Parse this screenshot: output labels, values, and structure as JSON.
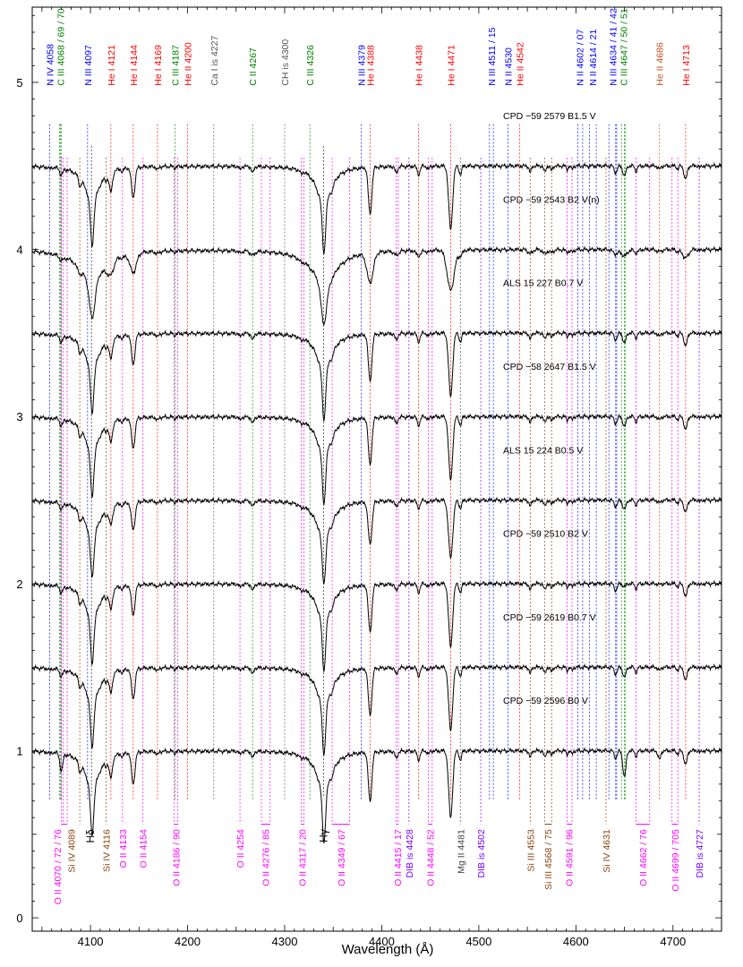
{
  "chart_data": {
    "type": "line",
    "title": "",
    "xlabel": "Wavelength (Å)",
    "ylabel": "",
    "xlim": [
      4040,
      4750
    ],
    "ylim": [
      -0.08,
      5.45
    ],
    "grid": false,
    "x_ticks": [
      4100,
      4200,
      4300,
      4400,
      4500,
      4600,
      4700
    ],
    "y_ticks": [
      0,
      1,
      2,
      3,
      4,
      5
    ],
    "colors": {
      "NIV": "#0000ff",
      "NIII": "#0000ff",
      "NII": "#0000ff",
      "CIII": "#008000",
      "CII": "#008000",
      "HeI": "#ff0000",
      "HeII": "#c8501e",
      "CaI": "#555555",
      "CH": "#555555",
      "OII": "#ff00ff",
      "SiIV": "#8b4513",
      "SiIII": "#8b4513",
      "MgII": "#444444",
      "DIB": "#7b00ff",
      "H": "#000000"
    },
    "series": [
      {
        "name": "CPD −59 2579   B1.5 V",
        "offset": 4.5,
        "profile": "b15",
        "vsini": 1.0,
        "strength": 1.0
      },
      {
        "name": "CPD −59 2543   B2 V(n)",
        "offset": 4.0,
        "profile": "b2n",
        "vsini": 1.8,
        "strength": 0.85
      },
      {
        "name": "ALS 15 227   B0.7 V",
        "offset": 3.5,
        "profile": "b07",
        "vsini": 1.0,
        "strength": 1.0
      },
      {
        "name": "CPD −58 2647   B1.5 V",
        "offset": 3.0,
        "profile": "b15",
        "vsini": 1.0,
        "strength": 1.0
      },
      {
        "name": "ALS 15 224   B0.5 V",
        "offset": 2.5,
        "profile": "b05",
        "vsini": 1.1,
        "strength": 0.95
      },
      {
        "name": "CPD −59 2510   B2 V",
        "offset": 2.0,
        "profile": "b2",
        "vsini": 1.0,
        "strength": 1.0
      },
      {
        "name": "CPD −59 2619   B0.7 V",
        "offset": 1.5,
        "profile": "b07",
        "vsini": 1.0,
        "strength": 1.0
      },
      {
        "name": "CPD −59 2596   B0 V",
        "offset": 1.0,
        "profile": "b0",
        "vsini": 1.0,
        "strength": 1.05
      }
    ],
    "top_labels": [
      {
        "text": "N IV 4058",
        "wl": 4058,
        "color": "#0000ff",
        "lines": [
          4058
        ]
      },
      {
        "text": "C III 4068 / 69 / 70",
        "wl": 4069,
        "color": "#008000",
        "lines": [
          4068,
          4069,
          4070
        ]
      },
      {
        "text": "N III 4097",
        "wl": 4097,
        "color": "#0000ff",
        "lines": [
          4097
        ]
      },
      {
        "text": "He I 4121",
        "wl": 4121,
        "color": "#ff0000",
        "lines": [
          4121
        ]
      },
      {
        "text": "He I 4144",
        "wl": 4144,
        "color": "#ff0000",
        "lines": [
          4144
        ]
      },
      {
        "text": "He I 4169",
        "wl": 4169,
        "color": "#ff0000",
        "lines": [
          4169
        ]
      },
      {
        "text": "C III 4187",
        "wl": 4187,
        "color": "#008000",
        "lines": [
          4187
        ]
      },
      {
        "text": "He II 4200",
        "wl": 4200,
        "color": "#ff0000",
        "lines": [
          4200
        ]
      },
      {
        "text": "Ca I is 4227",
        "wl": 4227,
        "color": "#555555",
        "lines": [
          4227
        ]
      },
      {
        "text": "C II 4267",
        "wl": 4267,
        "color": "#008000",
        "lines": [
          4267
        ]
      },
      {
        "text": "CH is 4300",
        "wl": 4300,
        "color": "#555555",
        "lines": [
          4300
        ]
      },
      {
        "text": "C III 4326",
        "wl": 4326,
        "color": "#008000",
        "lines": [
          4326
        ]
      },
      {
        "text": "N III 4379",
        "wl": 4379,
        "color": "#0000ff",
        "lines": [
          4379
        ]
      },
      {
        "text": "He I 4388",
        "wl": 4388,
        "color": "#ff0000",
        "lines": [
          4388
        ]
      },
      {
        "text": "He I 4438",
        "wl": 4438,
        "color": "#ff0000",
        "lines": [
          4438
        ]
      },
      {
        "text": "He I 4471",
        "wl": 4471,
        "color": "#ff0000",
        "lines": [
          4471
        ]
      },
      {
        "text": "N III 4511 / 15",
        "wl": 4513,
        "color": "#0000ff",
        "lines": [
          4511,
          4515
        ]
      },
      {
        "text": "N II 4530",
        "wl": 4530,
        "color": "#0000ff",
        "lines": [
          4530
        ]
      },
      {
        "text": "He II 4542",
        "wl": 4542,
        "color": "#ff0000",
        "lines": [
          4542
        ]
      },
      {
        "text": "N II 4602 / 07",
        "wl": 4604,
        "color": "#0000ff",
        "lines": [
          4602,
          4607
        ]
      },
      {
        "text": "N II 4614 / 21",
        "wl": 4617,
        "color": "#0000ff",
        "lines": [
          4614,
          4621
        ]
      },
      {
        "text": "N III 4634 / 41 / 42",
        "wl": 4638,
        "color": "#0000ff",
        "lines": [
          4634,
          4641,
          4642
        ]
      },
      {
        "text": "C III 4647 / 50 / 51",
        "wl": 4649,
        "color": "#008000",
        "lines": [
          4647,
          4650,
          4651
        ]
      },
      {
        "text": "He II 4686",
        "wl": 4686,
        "color": "#c8501e",
        "lines": [
          4686
        ]
      },
      {
        "text": "He I 4713",
        "wl": 4713,
        "color": "#ff0000",
        "lines": [
          4713
        ]
      }
    ],
    "bottom_labels": [
      {
        "text": "O II 4070 / 72 / 76",
        "wl": 4066,
        "color": "#ff00ff",
        "lines": [
          4070,
          4072,
          4076
        ]
      },
      {
        "text": "Si IV 4089",
        "wl": 4080,
        "color": "#8b4513",
        "lines": [
          4089
        ]
      },
      {
        "text": "Hδ",
        "wl": 4100,
        "color": "#000000",
        "lines": [
          4101
        ]
      },
      {
        "text": "Si IV 4116",
        "wl": 4116,
        "color": "#8b4513",
        "lines": [
          4116
        ]
      },
      {
        "text": "O II 4133",
        "wl": 4133,
        "color": "#ff00ff",
        "lines": [
          4133
        ]
      },
      {
        "text": "O II 4154",
        "wl": 4154,
        "color": "#ff00ff",
        "lines": [
          4154
        ]
      },
      {
        "text": "O II 4186 / 90",
        "wl": 4188,
        "color": "#ff00ff",
        "lines": [
          4186,
          4190
        ]
      },
      {
        "text": "O II 4254",
        "wl": 4254,
        "color": "#ff00ff",
        "lines": [
          4254
        ]
      },
      {
        "text": "O II 4276 / 85",
        "wl": 4280,
        "color": "#ff00ff",
        "lines": [
          4276,
          4285
        ]
      },
      {
        "text": "O II 4317 / 20",
        "wl": 4318,
        "color": "#ff00ff",
        "lines": [
          4317,
          4320
        ]
      },
      {
        "text": "Hγ",
        "wl": 4340,
        "color": "#000000",
        "lines": [
          4340
        ]
      },
      {
        "text": "O II 4349 / 67",
        "wl": 4358,
        "color": "#ff00ff",
        "lines": [
          4349,
          4367
        ]
      },
      {
        "text": "O II 4415 / 17",
        "wl": 4416,
        "color": "#ff00ff",
        "lines": [
          4415,
          4417
        ]
      },
      {
        "text": "DIB is 4428",
        "wl": 4428,
        "color": "#7b00ff",
        "lines": [
          4428
        ]
      },
      {
        "text": "O II 4448 / 52",
        "wl": 4450,
        "color": "#ff00ff",
        "lines": [
          4448,
          4452
        ]
      },
      {
        "text": "Mg II 4481",
        "wl": 4481,
        "color": "#444444",
        "lines": [
          4481
        ]
      },
      {
        "text": "DIB is 4502",
        "wl": 4502,
        "color": "#7b00ff",
        "lines": [
          4502
        ]
      },
      {
        "text": "Si III 4553",
        "wl": 4553,
        "color": "#8b4513",
        "lines": [
          4553
        ]
      },
      {
        "text": "Si III 4568 / 75",
        "wl": 4571,
        "color": "#8b4513",
        "lines": [
          4568,
          4575
        ]
      },
      {
        "text": "O II 4591 / 96",
        "wl": 4593,
        "color": "#ff00ff",
        "lines": [
          4591,
          4596
        ]
      },
      {
        "text": "Si IV 4631",
        "wl": 4631,
        "color": "#8b4513",
        "lines": [
          4631
        ]
      },
      {
        "text": "O II 4662 / 76",
        "wl": 4669,
        "color": "#ff00ff",
        "lines": [
          4662,
          4676
        ]
      },
      {
        "text": "O II 4699 / 705",
        "wl": 4702,
        "color": "#ff00ff",
        "lines": [
          4699,
          4705
        ]
      },
      {
        "text": "DIB is 4727",
        "wl": 4727,
        "color": "#7b00ff",
        "lines": [
          4727
        ]
      }
    ]
  }
}
